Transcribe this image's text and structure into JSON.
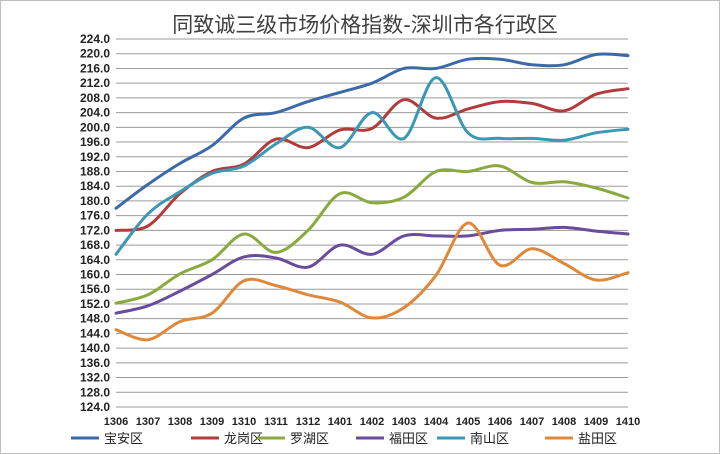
{
  "chart_data": {
    "type": "line",
    "title": "同致诚三级市场价格指数-深圳市各行政区",
    "xlabel": "",
    "ylabel": "",
    "ylim": [
      124.0,
      224.0
    ],
    "ytick_step": 4,
    "grid": "horizontal",
    "legend_position": "bottom",
    "x": [
      "1306",
      "1307",
      "1308",
      "1309",
      "1310",
      "1311",
      "1312",
      "1401",
      "1402",
      "1403",
      "1404",
      "1405",
      "1406",
      "1407",
      "1408",
      "1409",
      "1410"
    ],
    "series": [
      {
        "name": "宝安区",
        "color": "#3c6aa8",
        "values": [
          178.0,
          184.5,
          190.2,
          195.0,
          202.5,
          204.0,
          207.0,
          209.5,
          212.0,
          216.0,
          216.0,
          218.5,
          218.5,
          217.0,
          217.0,
          219.8,
          219.5
        ]
      },
      {
        "name": "龙岗区",
        "color": "#b23b3b",
        "values": [
          172.0,
          173.2,
          182.0,
          188.0,
          190.0,
          196.8,
          194.5,
          199.3,
          199.7,
          207.5,
          202.5,
          205.0,
          207.0,
          206.5,
          204.5,
          209.0,
          210.5
        ]
      },
      {
        "name": "罗湖区",
        "color": "#8aa93e",
        "values": [
          152.2,
          154.5,
          160.2,
          164.0,
          171.0,
          166.0,
          172.0,
          182.0,
          179.5,
          181.0,
          188.0,
          188.0,
          189.5,
          185.0,
          185.2,
          183.5,
          180.8
        ]
      },
      {
        "name": "福田区",
        "color": "#6a4c9c",
        "values": [
          149.5,
          151.5,
          155.5,
          160.0,
          164.8,
          164.5,
          162.0,
          168.0,
          165.5,
          170.5,
          170.5,
          170.5,
          172.0,
          172.3,
          172.8,
          171.8,
          171.0
        ]
      },
      {
        "name": "南山区",
        "color": "#3a98b4",
        "values": [
          165.5,
          176.5,
          182.5,
          187.5,
          189.5,
          195.5,
          200.0,
          194.5,
          204.0,
          197.0,
          213.5,
          198.5,
          197.0,
          197.0,
          196.5,
          198.5,
          199.5
        ]
      },
      {
        "name": "盐田区",
        "color": "#e0883a",
        "values": [
          145.0,
          142.3,
          147.2,
          149.5,
          158.3,
          157.0,
          154.5,
          152.5,
          148.2,
          151.0,
          159.8,
          174.0,
          162.5,
          167.0,
          163.0,
          158.5,
          160.5
        ]
      }
    ]
  }
}
